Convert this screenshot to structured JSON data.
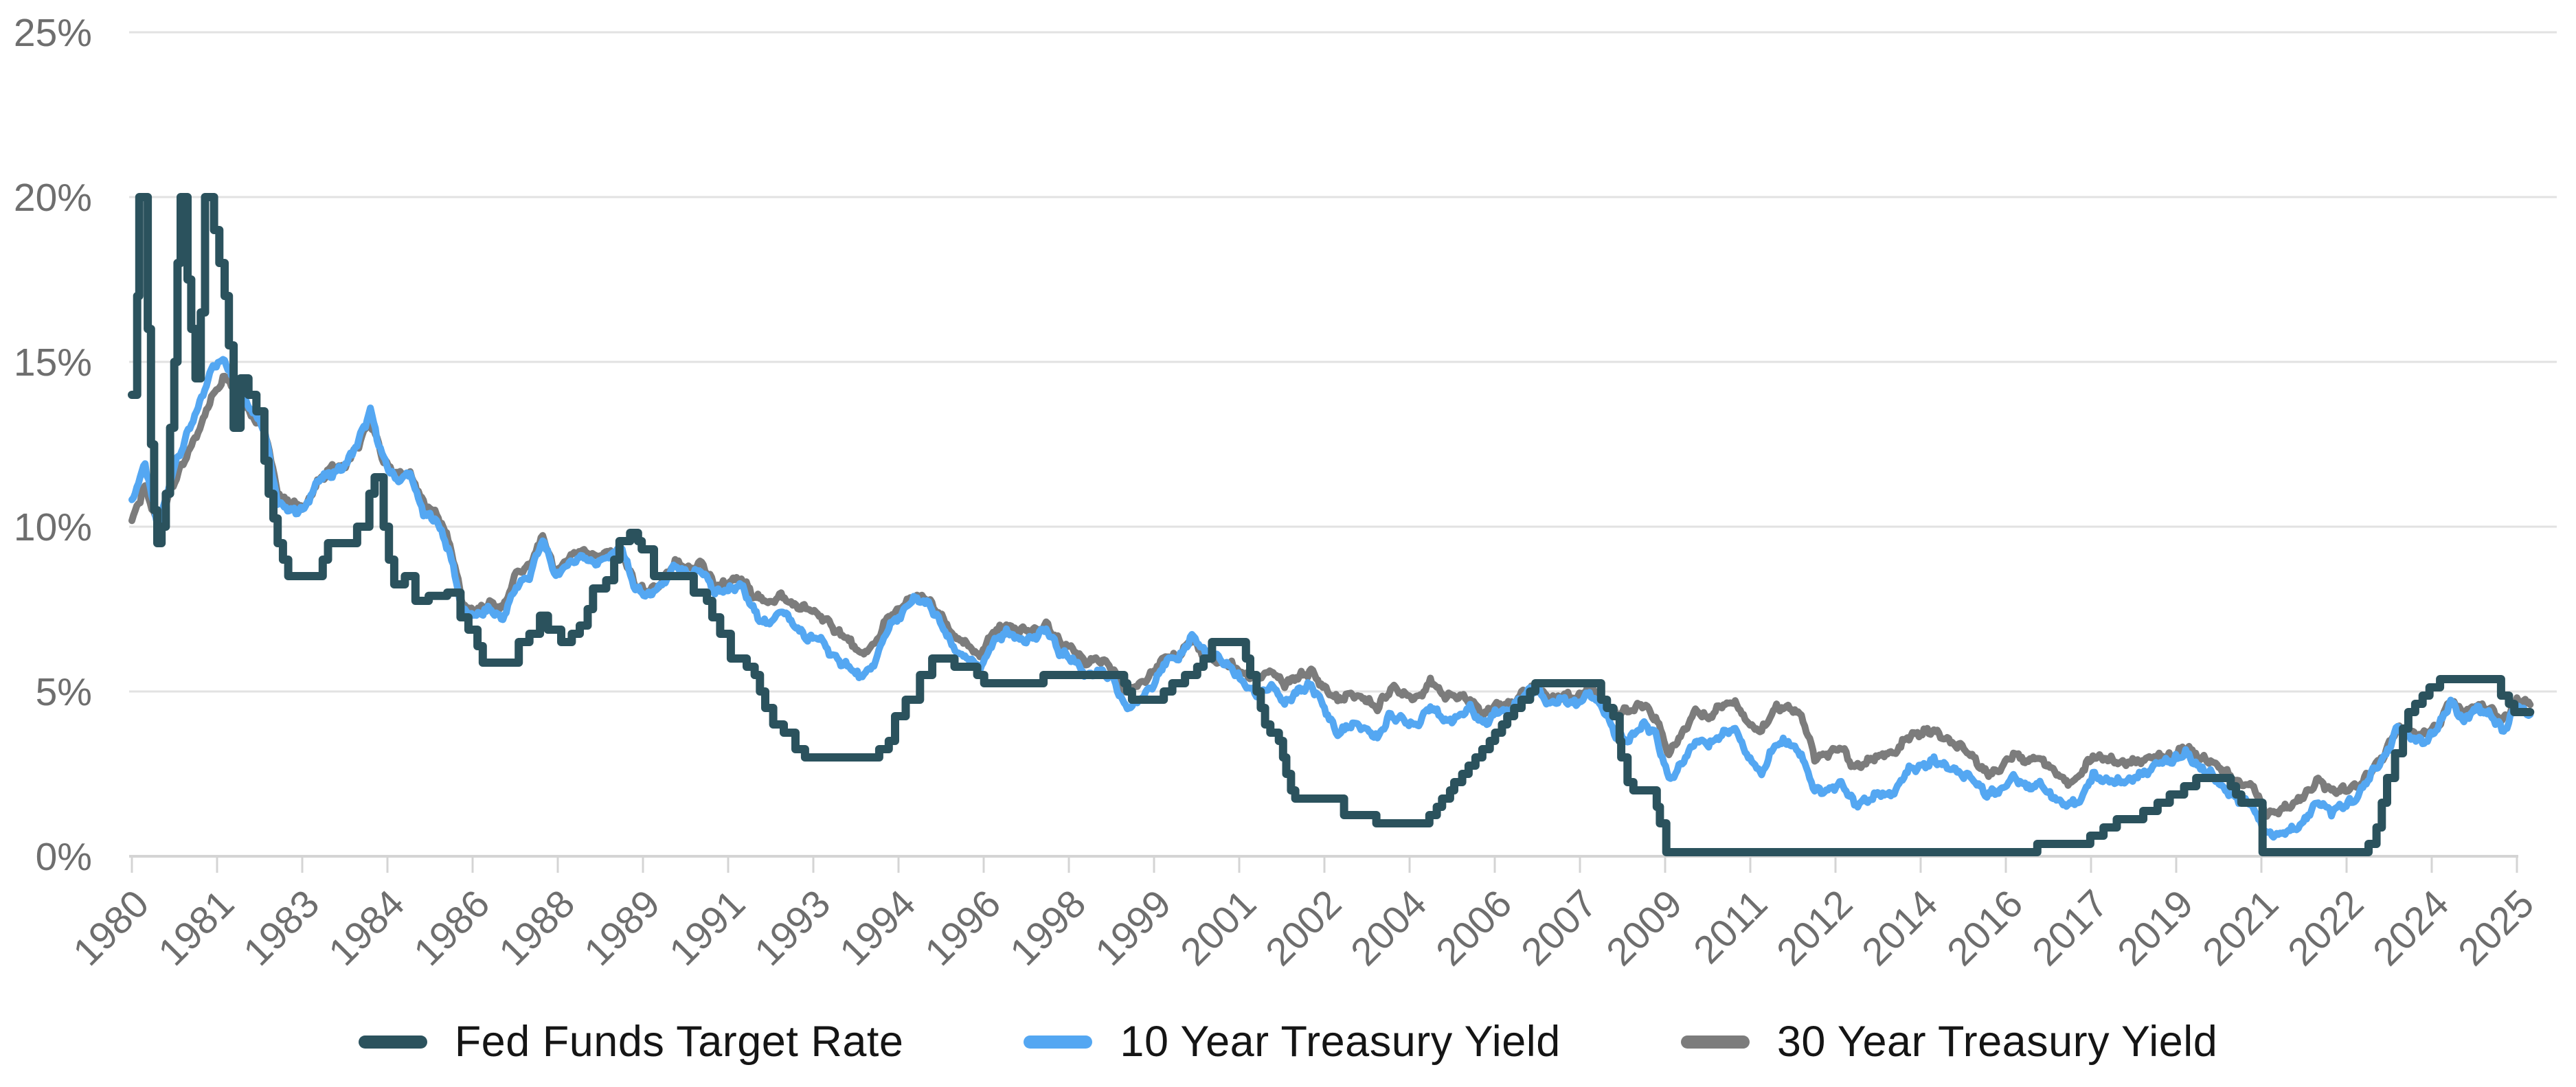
{
  "page": {
    "background": "#ffffff"
  },
  "chart_data": {
    "type": "line",
    "title": "",
    "xlabel": "",
    "ylabel": "",
    "grid": "horizontal",
    "colors": {
      "fed_funds": "#2b525d",
      "treasury_10y": "#54a7f2",
      "treasury_30y": "#7c7c7c",
      "gridline": "#e2e2e2",
      "axis": "#d4d4d4",
      "tick_text": "#6e6e6e",
      "legend_text": "#151515"
    },
    "y_axis": {
      "min": 0,
      "max": 25,
      "unit": "%",
      "ticks": [
        25,
        20,
        15,
        10,
        5,
        0
      ],
      "tick_labels": [
        "25%",
        "20%",
        "15%",
        "10%",
        "5%",
        "0%"
      ]
    },
    "x_axis": {
      "start_year": 1980,
      "end_year": 2025.25,
      "tick_labels": [
        "1980",
        "1981",
        "1983",
        "1984",
        "1986",
        "1988",
        "1989",
        "1991",
        "1993",
        "1994",
        "1996",
        "1998",
        "1999",
        "2001",
        "2002",
        "2004",
        "2006",
        "2007",
        "2009",
        "2011",
        "2012",
        "2014",
        "2016",
        "2017",
        "2019",
        "2021",
        "2022",
        "2024",
        "2025"
      ],
      "label_rotation_deg": -45
    },
    "legend": {
      "position": "bottom"
    },
    "series": [
      {
        "name": "Fed Funds Target Rate",
        "color": "#2b525d",
        "style": "step",
        "clip_max": 20,
        "points": [
          [
            1980.0,
            14
          ],
          [
            1980.1,
            17
          ],
          [
            1980.14,
            20
          ],
          [
            1980.3,
            16
          ],
          [
            1980.36,
            12.5
          ],
          [
            1980.42,
            10.5
          ],
          [
            1980.48,
            9.5
          ],
          [
            1980.56,
            10
          ],
          [
            1980.64,
            11
          ],
          [
            1980.72,
            13
          ],
          [
            1980.8,
            15
          ],
          [
            1980.86,
            18
          ],
          [
            1980.92,
            20
          ],
          [
            1981.05,
            17.5
          ],
          [
            1981.12,
            16
          ],
          [
            1981.2,
            14.5
          ],
          [
            1981.3,
            16.5
          ],
          [
            1981.38,
            20
          ],
          [
            1981.55,
            19
          ],
          [
            1981.65,
            18
          ],
          [
            1981.75,
            17
          ],
          [
            1981.83,
            15.5
          ],
          [
            1981.92,
            13
          ],
          [
            1982.05,
            14.5
          ],
          [
            1982.2,
            14
          ],
          [
            1982.35,
            13.5
          ],
          [
            1982.5,
            12
          ],
          [
            1982.58,
            11
          ],
          [
            1982.67,
            10.25
          ],
          [
            1982.75,
            9.5
          ],
          [
            1982.85,
            9.0
          ],
          [
            1982.95,
            8.5
          ],
          [
            1983.6,
            9.0
          ],
          [
            1983.7,
            9.5
          ],
          [
            1984.25,
            10.0
          ],
          [
            1984.48,
            11.0
          ],
          [
            1984.58,
            11.5
          ],
          [
            1984.75,
            10.0
          ],
          [
            1984.85,
            9.0
          ],
          [
            1984.95,
            8.25
          ],
          [
            1985.15,
            8.5
          ],
          [
            1985.35,
            7.75
          ],
          [
            1985.6,
            7.9
          ],
          [
            1985.95,
            8.0
          ],
          [
            1986.2,
            7.25
          ],
          [
            1986.35,
            6.875
          ],
          [
            1986.52,
            6.375
          ],
          [
            1986.62,
            5.875
          ],
          [
            1987.3,
            6.5
          ],
          [
            1987.5,
            6.75
          ],
          [
            1987.7,
            7.3
          ],
          [
            1987.85,
            6.875
          ],
          [
            1988.1,
            6.5
          ],
          [
            1988.3,
            6.75
          ],
          [
            1988.45,
            7.0
          ],
          [
            1988.6,
            7.5
          ],
          [
            1988.7,
            8.125
          ],
          [
            1988.95,
            8.375
          ],
          [
            1989.1,
            9.0
          ],
          [
            1989.2,
            9.5625
          ],
          [
            1989.4,
            9.8125
          ],
          [
            1989.55,
            9.5625
          ],
          [
            1989.62,
            9.3125
          ],
          [
            1989.85,
            8.5
          ],
          [
            1990.6,
            8.0
          ],
          [
            1990.85,
            7.75
          ],
          [
            1990.95,
            7.25
          ],
          [
            1991.1,
            6.75
          ],
          [
            1991.3,
            6.0
          ],
          [
            1991.6,
            5.75
          ],
          [
            1991.75,
            5.5
          ],
          [
            1991.85,
            5.0
          ],
          [
            1991.95,
            4.5
          ],
          [
            1992.1,
            4.0
          ],
          [
            1992.3,
            3.75
          ],
          [
            1992.52,
            3.25
          ],
          [
            1992.7,
            3.0
          ],
          [
            1994.1,
            3.25
          ],
          [
            1994.28,
            3.5
          ],
          [
            1994.4,
            4.25
          ],
          [
            1994.6,
            4.75
          ],
          [
            1994.87,
            5.5
          ],
          [
            1995.1,
            6.0
          ],
          [
            1995.52,
            5.75
          ],
          [
            1995.95,
            5.5
          ],
          [
            1996.08,
            5.25
          ],
          [
            1997.2,
            5.5
          ],
          [
            1998.72,
            5.25
          ],
          [
            1998.78,
            5.0
          ],
          [
            1998.87,
            4.75
          ],
          [
            1999.47,
            5.0
          ],
          [
            1999.63,
            5.25
          ],
          [
            1999.87,
            5.5
          ],
          [
            2000.1,
            5.75
          ],
          [
            2000.22,
            6.0
          ],
          [
            2000.38,
            6.5
          ],
          [
            2001.02,
            6.0
          ],
          [
            2001.1,
            5.5
          ],
          [
            2001.22,
            5.0
          ],
          [
            2001.3,
            4.5
          ],
          [
            2001.38,
            4.0
          ],
          [
            2001.48,
            3.75
          ],
          [
            2001.64,
            3.5
          ],
          [
            2001.72,
            3.0
          ],
          [
            2001.78,
            2.5
          ],
          [
            2001.87,
            2.0
          ],
          [
            2001.95,
            1.75
          ],
          [
            2002.87,
            1.25
          ],
          [
            2003.48,
            1.0
          ],
          [
            2004.48,
            1.25
          ],
          [
            2004.62,
            1.5
          ],
          [
            2004.72,
            1.75
          ],
          [
            2004.87,
            2.0
          ],
          [
            2004.95,
            2.25
          ],
          [
            2005.1,
            2.5
          ],
          [
            2005.22,
            2.75
          ],
          [
            2005.35,
            3.0
          ],
          [
            2005.48,
            3.25
          ],
          [
            2005.62,
            3.5
          ],
          [
            2005.72,
            3.75
          ],
          [
            2005.85,
            4.0
          ],
          [
            2005.95,
            4.25
          ],
          [
            2006.08,
            4.5
          ],
          [
            2006.22,
            4.75
          ],
          [
            2006.38,
            5.0
          ],
          [
            2006.48,
            5.25
          ],
          [
            2007.72,
            4.75
          ],
          [
            2007.83,
            4.5
          ],
          [
            2007.95,
            4.25
          ],
          [
            2008.07,
            3.5
          ],
          [
            2008.1,
            3.0
          ],
          [
            2008.22,
            2.25
          ],
          [
            2008.33,
            2.0
          ],
          [
            2008.77,
            1.5
          ],
          [
            2008.83,
            1.0
          ],
          [
            2008.95,
            0.125
          ],
          [
            2015.95,
            0.375
          ],
          [
            2016.95,
            0.625
          ],
          [
            2017.2,
            0.875
          ],
          [
            2017.45,
            1.125
          ],
          [
            2017.95,
            1.375
          ],
          [
            2018.22,
            1.625
          ],
          [
            2018.45,
            1.875
          ],
          [
            2018.72,
            2.125
          ],
          [
            2018.95,
            2.375
          ],
          [
            2019.6,
            2.125
          ],
          [
            2019.7,
            1.875
          ],
          [
            2019.8,
            1.625
          ],
          [
            2020.2,
            0.125
          ],
          [
            2022.2,
            0.375
          ],
          [
            2022.35,
            0.875
          ],
          [
            2022.45,
            1.625
          ],
          [
            2022.55,
            2.375
          ],
          [
            2022.7,
            3.125
          ],
          [
            2022.85,
            3.875
          ],
          [
            2022.95,
            4.375
          ],
          [
            2023.08,
            4.625
          ],
          [
            2023.22,
            4.875
          ],
          [
            2023.35,
            5.125
          ],
          [
            2023.55,
            5.375
          ],
          [
            2024.7,
            4.875
          ],
          [
            2024.85,
            4.625
          ],
          [
            2024.95,
            4.375
          ],
          [
            2025.25,
            4.375
          ]
        ]
      },
      {
        "name": "10 Year Treasury Yield",
        "color": "#54a7f2",
        "style": "line",
        "start": 1980.0,
        "step": 0.25,
        "values": [
          10.8,
          11.9,
          9.9,
          11.6,
          12.6,
          13.6,
          14.8,
          15.1,
          14.2,
          13.6,
          13.0,
          10.7,
          10.5,
          10.5,
          11.4,
          11.6,
          11.8,
          12.5,
          13.5,
          12.0,
          11.4,
          11.6,
          10.4,
          10.2,
          9.2,
          7.4,
          7.3,
          7.5,
          7.2,
          8.2,
          8.5,
          9.6,
          8.5,
          8.9,
          9.1,
          8.9,
          9.1,
          9.3,
          8.1,
          7.9,
          8.2,
          8.8,
          8.5,
          8.7,
          8.0,
          8.1,
          8.2,
          7.4,
          7.0,
          7.5,
          7.0,
          6.6,
          6.6,
          6.0,
          5.8,
          5.4,
          5.8,
          6.9,
          7.3,
          7.8,
          7.7,
          7.1,
          6.3,
          6.0,
          5.7,
          6.5,
          6.8,
          6.6,
          6.6,
          6.9,
          6.2,
          6.0,
          5.5,
          5.6,
          5.4,
          4.5,
          4.7,
          5.2,
          5.9,
          6.0,
          6.7,
          6.2,
          6.0,
          5.7,
          5.2,
          4.9,
          5.2,
          4.6,
          5.0,
          5.2,
          4.5,
          3.7,
          4.0,
          3.9,
          3.6,
          4.3,
          4.1,
          4.0,
          4.6,
          4.1,
          4.2,
          4.5,
          4.0,
          4.4,
          4.4,
          4.9,
          5.1,
          4.6,
          4.8,
          4.6,
          5.0,
          4.5,
          3.7,
          3.5,
          4.0,
          3.7,
          2.3,
          2.8,
          3.5,
          3.4,
          3.7,
          3.9,
          3.0,
          2.5,
          3.4,
          3.5,
          3.1,
          2.0,
          2.0,
          2.2,
          1.6,
          1.7,
          1.9,
          1.9,
          2.6,
          2.7,
          2.9,
          2.7,
          2.5,
          2.3,
          1.9,
          2.0,
          2.4,
          2.1,
          2.2,
          1.8,
          1.5,
          1.7,
          2.45,
          2.3,
          2.25,
          2.35,
          2.55,
          2.85,
          2.9,
          3.15,
          2.7,
          2.5,
          2.0,
          1.7,
          1.6,
          0.7,
          0.65,
          0.8,
          1.1,
          1.7,
          1.35,
          1.55,
          1.8,
          2.5,
          3.0,
          3.9,
          3.6,
          3.45,
          3.85,
          4.7,
          4.1,
          4.5,
          4.3,
          3.8,
          4.55,
          4.3
        ]
      },
      {
        "name": "30 Year Treasury Yield",
        "color": "#7c7c7c",
        "style": "line",
        "start": 1980.0,
        "step": 0.25,
        "values": [
          10.2,
          11.2,
          10.0,
          11.2,
          12.0,
          12.9,
          13.9,
          14.6,
          14.1,
          13.4,
          13.0,
          11.0,
          10.7,
          10.6,
          11.3,
          11.8,
          11.8,
          12.4,
          13.2,
          12.0,
          11.6,
          11.6,
          10.7,
          10.4,
          9.5,
          7.6,
          7.4,
          7.7,
          7.5,
          8.6,
          8.8,
          9.7,
          8.6,
          9.1,
          9.3,
          9.1,
          9.2,
          9.2,
          8.2,
          8.0,
          8.3,
          8.9,
          8.7,
          8.9,
          8.2,
          8.3,
          8.4,
          7.9,
          7.7,
          7.9,
          7.6,
          7.5,
          7.3,
          6.9,
          6.6,
          6.1,
          6.4,
          7.2,
          7.5,
          7.9,
          7.8,
          7.3,
          6.7,
          6.4,
          6.1,
          6.8,
          7.0,
          6.9,
          6.8,
          7.0,
          6.5,
          6.3,
          5.9,
          5.95,
          5.7,
          5.0,
          5.2,
          5.6,
          6.0,
          6.1,
          6.6,
          6.0,
          5.9,
          5.8,
          5.5,
          5.45,
          5.6,
          5.2,
          5.45,
          5.6,
          5.1,
          4.75,
          4.9,
          4.8,
          4.5,
          5.1,
          4.95,
          4.8,
          5.3,
          4.9,
          4.85,
          4.75,
          4.3,
          4.6,
          4.6,
          4.95,
          5.15,
          4.75,
          4.9,
          4.8,
          5.2,
          4.75,
          4.35,
          4.4,
          4.6,
          4.2,
          3.1,
          3.7,
          4.4,
          4.2,
          4.6,
          4.7,
          4.0,
          3.8,
          4.5,
          4.55,
          4.3,
          3.0,
          3.1,
          3.3,
          2.7,
          2.85,
          3.1,
          3.1,
          3.6,
          3.75,
          3.8,
          3.5,
          3.3,
          3.0,
          2.5,
          2.65,
          3.1,
          2.9,
          3.0,
          2.6,
          2.2,
          2.45,
          3.05,
          2.95,
          2.85,
          2.85,
          2.95,
          3.05,
          3.0,
          3.35,
          3.0,
          2.9,
          2.55,
          2.2,
          2.2,
          1.3,
          1.35,
          1.6,
          1.85,
          2.35,
          1.95,
          2.05,
          2.1,
          2.6,
          3.1,
          3.9,
          3.7,
          3.7,
          3.9,
          4.75,
          4.3,
          4.6,
          4.45,
          4.1,
          4.75,
          4.6
        ]
      }
    ]
  }
}
